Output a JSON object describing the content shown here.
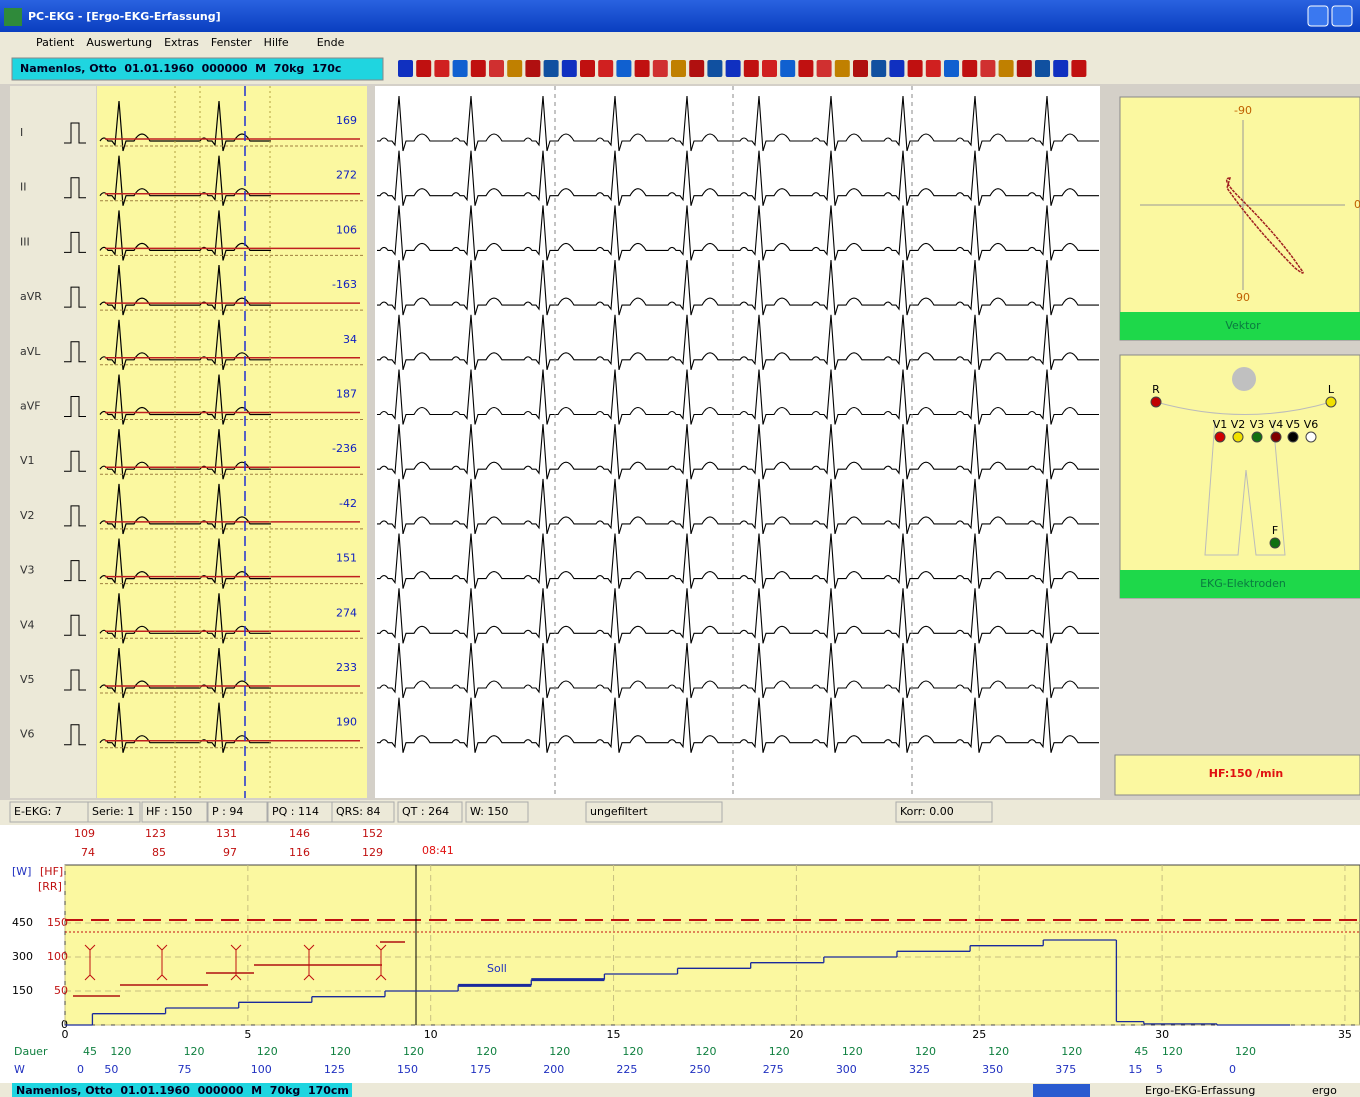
{
  "window": {
    "title": "PC-EKG - [Ergo-EKG-Erfassung]"
  },
  "menu": [
    "Patient",
    "Auswertung",
    "Extras",
    "Fenster",
    "Hilfe",
    "Ende"
  ],
  "patient": "Namenlos, Otto  01.01.1960  000000  M  70kg  170c",
  "leads": [
    {
      "name": "I",
      "value": 169
    },
    {
      "name": "II",
      "value": 272
    },
    {
      "name": "III",
      "value": 106
    },
    {
      "name": "aVR",
      "value": -163
    },
    {
      "name": "aVL",
      "value": 34
    },
    {
      "name": "aVF",
      "value": 187
    },
    {
      "name": "V1",
      "value": -236
    },
    {
      "name": "V2",
      "value": -42
    },
    {
      "name": "V3",
      "value": 151
    },
    {
      "name": "V4",
      "value": 274
    },
    {
      "name": "V5",
      "value": 233
    },
    {
      "name": "V6",
      "value": 190
    }
  ],
  "vector": {
    "top": "-90",
    "bottom": "90",
    "right": "0",
    "label": "Vektor"
  },
  "electrodes": {
    "labels": [
      "R",
      "L",
      "V1",
      "V2",
      "V3",
      "V4",
      "V5",
      "V6",
      "F"
    ],
    "label": "EKG-Elektroden"
  },
  "heart_rate": "HF:150 /min",
  "status": [
    "E-EKG: 7",
    "Serie: 1",
    "HF : 150",
    "P : 94",
    "PQ : 114",
    "QRS: 84",
    "QT : 264",
    "W: 150",
    "ungefiltert",
    "Korr: 0.00"
  ],
  "bp": [
    {
      "sys": 109,
      "dia": 74
    },
    {
      "sys": 123,
      "dia": 85
    },
    {
      "sys": 131,
      "dia": 97
    },
    {
      "sys": 146,
      "dia": 116
    },
    {
      "sys": 152,
      "dia": 129
    }
  ],
  "time": "08:41",
  "trend": {
    "axis_labels": [
      "[W]",
      "[HF]",
      "[RR]"
    ],
    "w_ticks": [
      450,
      300,
      150,
      0
    ],
    "hf_ticks": [
      150,
      100,
      50
    ],
    "x_ticks": [
      0,
      5,
      10,
      15,
      20,
      25,
      30,
      35
    ],
    "target_label": "Soll",
    "row_labels": [
      "Dauer",
      "W"
    ],
    "stages": [
      {
        "dauer": 45,
        "w": 0
      },
      {
        "dauer": 120,
        "w": 50
      },
      {
        "dauer": 120,
        "w": 75
      },
      {
        "dauer": 120,
        "w": 100
      },
      {
        "dauer": 120,
        "w": 125
      },
      {
        "dauer": 120,
        "w": 150
      },
      {
        "dauer": 120,
        "w": 175
      },
      {
        "dauer": 120,
        "w": 200
      },
      {
        "dauer": 120,
        "w": 225
      },
      {
        "dauer": 120,
        "w": 250
      },
      {
        "dauer": 120,
        "w": 275
      },
      {
        "dauer": 120,
        "w": 300
      },
      {
        "dauer": 120,
        "w": 325
      },
      {
        "dauer": 120,
        "w": 350
      },
      {
        "dauer": 120,
        "w": 375
      },
      {
        "dauer": 45,
        "w": 15
      },
      {
        "dauer": 120,
        "w": 5
      },
      {
        "dauer": 120,
        "w": 0
      }
    ]
  },
  "footer": {
    "patient": "Namenlos, Otto  01.01.1960  000000  M  70kg  170cm",
    "mode": "Ergo-EKG-Erfassung",
    "user": "ergo"
  }
}
